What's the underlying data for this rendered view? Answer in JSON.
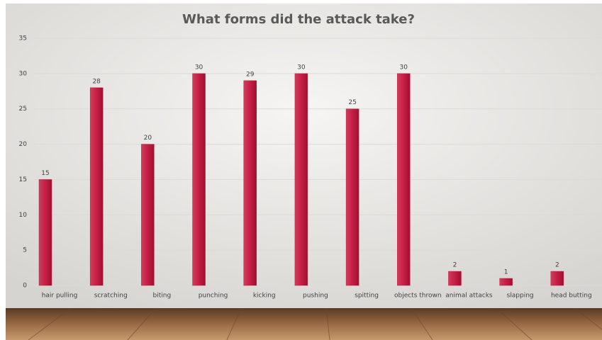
{
  "chart_data": {
    "type": "bar",
    "title": "What forms did the attack take?",
    "categories": [
      "hair pulling",
      "scratching",
      "biting",
      "punching",
      "kicking",
      "pushing",
      "spitting",
      "objects thrown",
      "animal attacks",
      "slapping",
      "head butting"
    ],
    "values": [
      15,
      28,
      20,
      30,
      29,
      30,
      25,
      30,
      2,
      1,
      2
    ],
    "color": "#c41e45",
    "ylim": [
      0,
      35
    ],
    "yticks": [
      0,
      5,
      10,
      15,
      20,
      25,
      30,
      35
    ],
    "grid": true,
    "data_labels": true
  }
}
